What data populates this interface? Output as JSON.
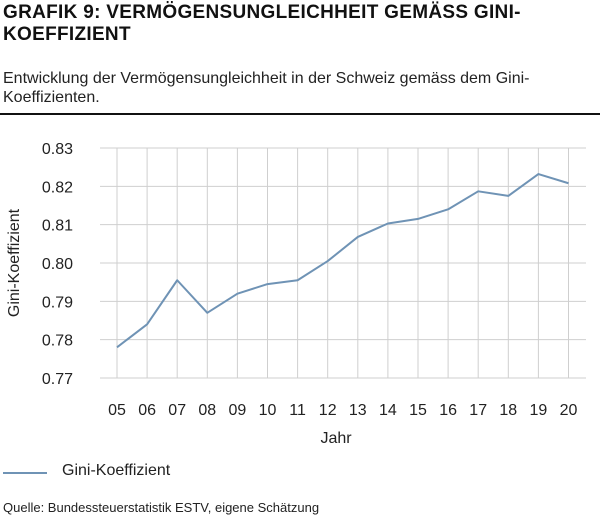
{
  "header": {
    "title": "GRAFIK 9: VERMÖGENSUNGLEICHHEIT GEMÄSS GINI-KOEFFIZIENT",
    "subtitle": "Entwicklung der Vermögensungleichheit in der Schweiz gemäss dem Gini-Koeffizienten."
  },
  "footer": {
    "source": "Quelle: Bundessteuerstatistik ESTV, eigene Schätzung"
  },
  "colors": {
    "series": "#6f93b5",
    "grid": "#cfcfcf",
    "axis": "#444444"
  },
  "chart_data": {
    "type": "line",
    "title": "",
    "xlabel": "Jahr",
    "ylabel": "Gini-Koeffizient",
    "categories": [
      "05",
      "06",
      "07",
      "08",
      "09",
      "10",
      "11",
      "12",
      "13",
      "14",
      "15",
      "16",
      "17",
      "18",
      "19",
      "20"
    ],
    "yticks": [
      "0.77",
      "0.78",
      "0.79",
      "0.80",
      "0.81",
      "0.82",
      "0.83"
    ],
    "ylim": [
      0.77,
      0.83
    ],
    "grid": true,
    "legend_position": "bottom-left",
    "series": [
      {
        "name": "Gini-Koeffizient",
        "values": [
          0.778,
          0.784,
          0.7955,
          0.787,
          0.792,
          0.7945,
          0.7955,
          0.8005,
          0.8068,
          0.8103,
          0.8115,
          0.814,
          0.8187,
          0.8175,
          0.8232,
          0.8208
        ]
      }
    ]
  }
}
